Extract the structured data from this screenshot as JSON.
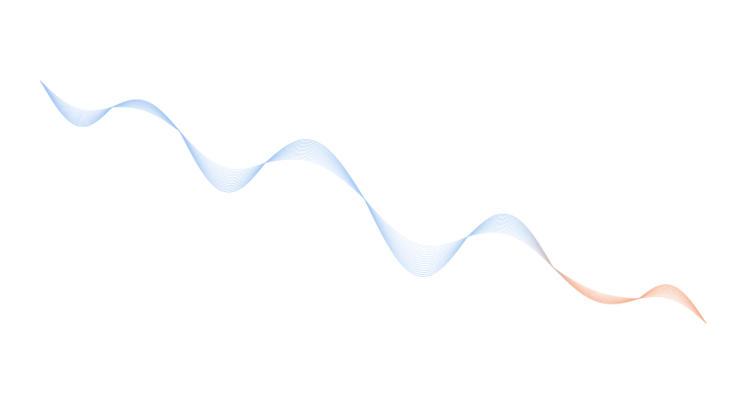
{
  "artwork": {
    "type": "decorative-wave-lines",
    "line_count": 18,
    "colors": {
      "background": "#ffffff",
      "start": "#9fc3f2",
      "middle": "#a9cdf3",
      "end": "#f4b393"
    }
  }
}
